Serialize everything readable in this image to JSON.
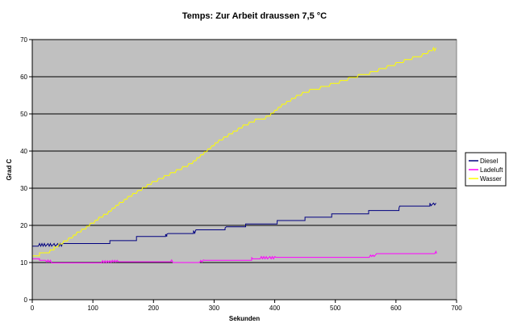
{
  "chart_data": {
    "type": "line",
    "title": "Temps: Zur Arbeit draussen 7,5 °C",
    "xlabel": "Sekunden",
    "ylabel": "Grad C",
    "xlim": [
      0,
      700
    ],
    "ylim": [
      0,
      70
    ],
    "x_ticks": [
      0,
      100,
      200,
      300,
      400,
      500,
      600,
      700
    ],
    "y_ticks": [
      0,
      10,
      20,
      30,
      40,
      50,
      60,
      70
    ],
    "grid": "horizontal",
    "legend_position": "right",
    "background_color": "#c0c0c0",
    "series": [
      {
        "name": "Diesel",
        "color": "#000080",
        "points": [
          [
            0,
            14.4
          ],
          [
            10,
            14.4
          ],
          [
            12,
            15.1
          ],
          [
            14,
            14.4
          ],
          [
            16,
            15.1
          ],
          [
            18,
            14.4
          ],
          [
            20,
            15.1
          ],
          [
            22,
            14.4
          ],
          [
            26,
            15.1
          ],
          [
            28,
            14.4
          ],
          [
            30,
            15.1
          ],
          [
            32,
            14.4
          ],
          [
            36,
            15.1
          ],
          [
            38,
            14.4
          ],
          [
            42,
            15.1
          ],
          [
            44,
            14.4
          ],
          [
            46,
            15.1
          ],
          [
            48,
            14.4
          ],
          [
            50,
            15.1
          ],
          [
            128,
            15.1
          ],
          [
            128,
            15.9
          ],
          [
            172,
            15.9
          ],
          [
            172,
            17.0
          ],
          [
            220,
            17.0
          ],
          [
            220,
            17.6
          ],
          [
            222,
            17.0
          ],
          [
            222,
            17.6
          ],
          [
            224,
            17.8
          ],
          [
            266,
            17.8
          ],
          [
            266,
            18.6
          ],
          [
            268,
            17.9
          ],
          [
            270,
            18.8
          ],
          [
            318,
            18.8
          ],
          [
            318,
            19.3
          ],
          [
            320,
            19.6
          ],
          [
            352,
            19.6
          ],
          [
            352,
            20.4
          ],
          [
            404,
            20.4
          ],
          [
            404,
            21.3
          ],
          [
            450,
            21.3
          ],
          [
            450,
            22.2
          ],
          [
            494,
            22.2
          ],
          [
            494,
            23.1
          ],
          [
            555,
            23.1
          ],
          [
            555,
            24.0
          ],
          [
            605,
            24.0
          ],
          [
            605,
            24.6
          ],
          [
            606,
            25.2
          ],
          [
            656,
            25.2
          ],
          [
            656,
            26.0
          ],
          [
            658,
            25.3
          ],
          [
            662,
            26.0
          ],
          [
            664,
            25.5
          ],
          [
            666,
            26.0
          ]
        ]
      },
      {
        "name": "Ladeluft",
        "color": "#ff00ff",
        "points": [
          [
            0,
            11.0
          ],
          [
            12,
            11.0
          ],
          [
            12,
            10.6
          ],
          [
            22,
            10.6
          ],
          [
            24,
            10.1
          ],
          [
            26,
            10.7
          ],
          [
            28,
            10.1
          ],
          [
            30,
            10.6
          ],
          [
            32,
            9.9
          ],
          [
            114,
            9.9
          ],
          [
            116,
            10.5
          ],
          [
            118,
            9.9
          ],
          [
            120,
            10.5
          ],
          [
            122,
            9.9
          ],
          [
            124,
            10.5
          ],
          [
            126,
            10.0
          ],
          [
            128,
            10.5
          ],
          [
            130,
            10.0
          ],
          [
            132,
            10.6
          ],
          [
            134,
            10.1
          ],
          [
            136,
            10.6
          ],
          [
            138,
            10.1
          ],
          [
            140,
            10.6
          ],
          [
            142,
            10.2
          ],
          [
            228,
            10.2
          ],
          [
            230,
            10.7
          ],
          [
            232,
            10.0
          ],
          [
            236,
            10.0
          ],
          [
            276,
            10.0
          ],
          [
            278,
            10.6
          ],
          [
            280,
            10.1
          ],
          [
            282,
            10.7
          ],
          [
            284,
            10.6
          ],
          [
            362,
            10.6
          ],
          [
            362,
            11.3
          ],
          [
            364,
            11.0
          ],
          [
            376,
            11.0
          ],
          [
            378,
            11.6
          ],
          [
            380,
            11.0
          ],
          [
            382,
            11.6
          ],
          [
            384,
            11.0
          ],
          [
            386,
            11.6
          ],
          [
            388,
            11.0
          ],
          [
            392,
            11.6
          ],
          [
            394,
            11.0
          ],
          [
            396,
            11.6
          ],
          [
            398,
            11.0
          ],
          [
            400,
            11.6
          ],
          [
            402,
            11.4
          ],
          [
            556,
            11.4
          ],
          [
            558,
            12.0
          ],
          [
            560,
            11.6
          ],
          [
            562,
            12.0
          ],
          [
            564,
            11.6
          ],
          [
            566,
            12.0
          ],
          [
            568,
            12.4
          ],
          [
            664,
            12.4
          ],
          [
            666,
            13.0
          ],
          [
            667,
            12.4
          ]
        ]
      },
      {
        "name": "Wasser",
        "color": "#ffff00",
        "points": [
          [
            0,
            11.8
          ],
          [
            12,
            11.8
          ],
          [
            12,
            12.6
          ],
          [
            28,
            12.6
          ],
          [
            30,
            13.4
          ],
          [
            36,
            13.4
          ],
          [
            36,
            14.2
          ],
          [
            42,
            14.2
          ],
          [
            44,
            15.0
          ],
          [
            50,
            15.0
          ],
          [
            52,
            15.8
          ],
          [
            58,
            15.8
          ],
          [
            60,
            16.6
          ],
          [
            66,
            16.6
          ],
          [
            68,
            17.4
          ],
          [
            72,
            17.4
          ],
          [
            74,
            18.2
          ],
          [
            80,
            18.2
          ],
          [
            82,
            19.0
          ],
          [
            88,
            19.0
          ],
          [
            90,
            19.8
          ],
          [
            94,
            19.8
          ],
          [
            96,
            20.6
          ],
          [
            102,
            20.6
          ],
          [
            104,
            21.4
          ],
          [
            108,
            21.4
          ],
          [
            110,
            22.2
          ],
          [
            116,
            22.2
          ],
          [
            118,
            23.0
          ],
          [
            124,
            23.0
          ],
          [
            126,
            23.8
          ],
          [
            130,
            23.8
          ],
          [
            132,
            24.6
          ],
          [
            136,
            24.6
          ],
          [
            138,
            25.4
          ],
          [
            142,
            25.4
          ],
          [
            144,
            26.2
          ],
          [
            150,
            26.2
          ],
          [
            152,
            27.0
          ],
          [
            156,
            27.0
          ],
          [
            158,
            27.8
          ],
          [
            164,
            27.8
          ],
          [
            166,
            28.6
          ],
          [
            172,
            28.6
          ],
          [
            174,
            29.4
          ],
          [
            180,
            29.4
          ],
          [
            182,
            30.2
          ],
          [
            188,
            30.2
          ],
          [
            190,
            31.0
          ],
          [
            196,
            31.0
          ],
          [
            198,
            31.8
          ],
          [
            206,
            31.8
          ],
          [
            208,
            32.6
          ],
          [
            216,
            32.6
          ],
          [
            218,
            33.4
          ],
          [
            226,
            33.4
          ],
          [
            228,
            34.2
          ],
          [
            236,
            34.2
          ],
          [
            238,
            35.0
          ],
          [
            246,
            35.0
          ],
          [
            248,
            35.8
          ],
          [
            256,
            35.8
          ],
          [
            258,
            36.6
          ],
          [
            264,
            36.6
          ],
          [
            266,
            37.4
          ],
          [
            270,
            37.4
          ],
          [
            272,
            38.2
          ],
          [
            276,
            38.2
          ],
          [
            278,
            39.0
          ],
          [
            282,
            39.0
          ],
          [
            284,
            39.8
          ],
          [
            288,
            39.8
          ],
          [
            290,
            40.6
          ],
          [
            294,
            40.6
          ],
          [
            296,
            41.4
          ],
          [
            300,
            41.4
          ],
          [
            302,
            42.2
          ],
          [
            306,
            42.2
          ],
          [
            308,
            43.0
          ],
          [
            314,
            43.0
          ],
          [
            316,
            43.8
          ],
          [
            322,
            43.8
          ],
          [
            324,
            44.6
          ],
          [
            330,
            44.6
          ],
          [
            332,
            45.4
          ],
          [
            338,
            45.4
          ],
          [
            340,
            46.2
          ],
          [
            346,
            46.2
          ],
          [
            348,
            47.0
          ],
          [
            356,
            47.0
          ],
          [
            358,
            47.8
          ],
          [
            366,
            47.8
          ],
          [
            368,
            48.6
          ],
          [
            384,
            48.6
          ],
          [
            386,
            49.4
          ],
          [
            392,
            49.4
          ],
          [
            394,
            50.2
          ],
          [
            398,
            50.2
          ],
          [
            400,
            51.0
          ],
          [
            404,
            51.0
          ],
          [
            406,
            51.8
          ],
          [
            410,
            51.8
          ],
          [
            412,
            52.6
          ],
          [
            418,
            52.6
          ],
          [
            420,
            53.4
          ],
          [
            426,
            53.4
          ],
          [
            428,
            54.2
          ],
          [
            434,
            54.2
          ],
          [
            436,
            55.0
          ],
          [
            444,
            55.0
          ],
          [
            446,
            55.8
          ],
          [
            456,
            55.8
          ],
          [
            458,
            56.6
          ],
          [
            474,
            56.6
          ],
          [
            476,
            57.4
          ],
          [
            490,
            57.4
          ],
          [
            492,
            58.2
          ],
          [
            506,
            58.2
          ],
          [
            508,
            59.0
          ],
          [
            520,
            59.0
          ],
          [
            522,
            59.8
          ],
          [
            536,
            59.8
          ],
          [
            538,
            60.6
          ],
          [
            556,
            60.6
          ],
          [
            558,
            61.4
          ],
          [
            570,
            61.4
          ],
          [
            572,
            62.2
          ],
          [
            584,
            62.2
          ],
          [
            586,
            63.0
          ],
          [
            598,
            63.0
          ],
          [
            600,
            63.8
          ],
          [
            612,
            63.8
          ],
          [
            614,
            64.6
          ],
          [
            626,
            64.6
          ],
          [
            628,
            65.4
          ],
          [
            642,
            65.4
          ],
          [
            644,
            66.2
          ],
          [
            652,
            66.2
          ],
          [
            654,
            67.0
          ],
          [
            660,
            67.0
          ],
          [
            662,
            67.8
          ],
          [
            664,
            67.0
          ],
          [
            666,
            67.8
          ]
        ]
      }
    ]
  }
}
